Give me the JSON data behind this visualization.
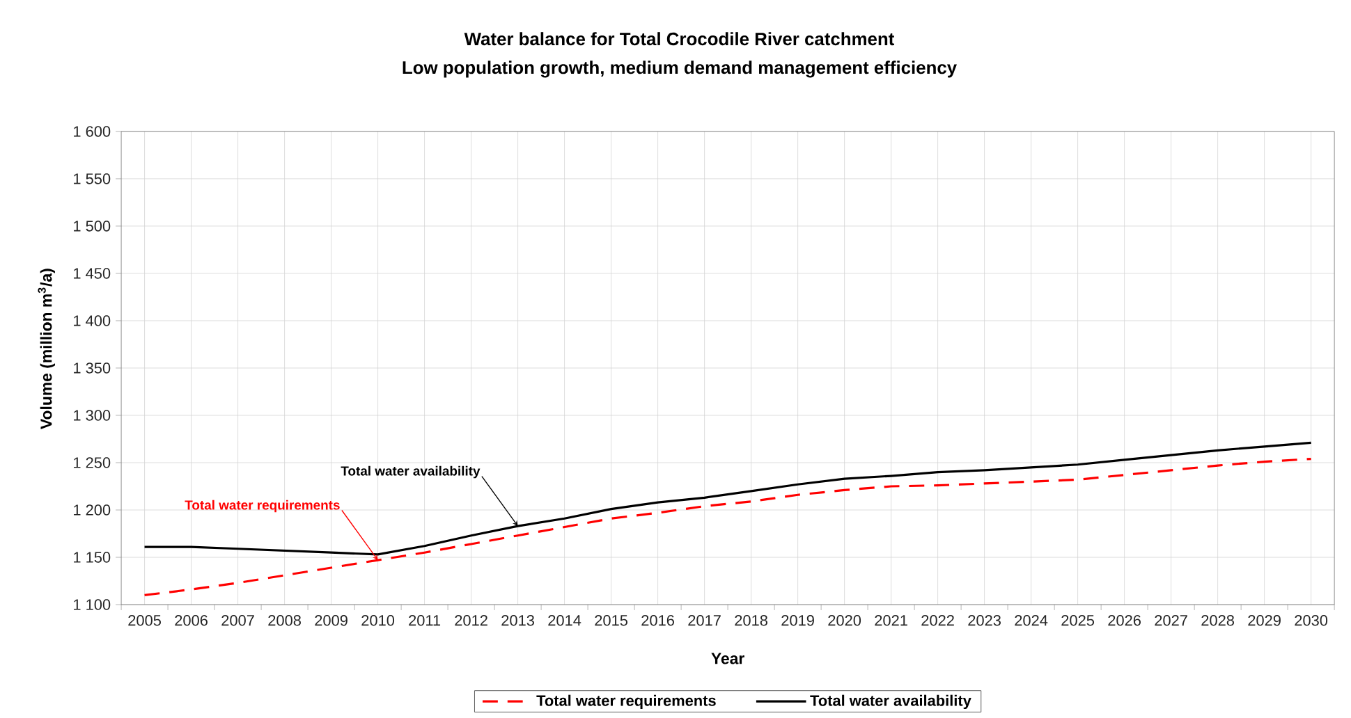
{
  "chart_data": {
    "type": "line",
    "title": "Water balance for Total Crocodile River catchment",
    "subtitle": "Low population growth, medium demand management efficiency",
    "xlabel": "Year",
    "ylabel": "Volume (million m$^{3}$/a)",
    "categories": [
      "2005",
      "2006",
      "2007",
      "2008",
      "2009",
      "2010",
      "2011",
      "2012",
      "2013",
      "2014",
      "2015",
      "2016",
      "2017",
      "2018",
      "2019",
      "2020",
      "2021",
      "2022",
      "2023",
      "2024",
      "2025",
      "2026",
      "2027",
      "2028",
      "2029",
      "2030"
    ],
    "series": [
      {
        "name": "Total water requirements",
        "color": "#ff0000",
        "line_style": "dashed",
        "values": [
          1110,
          1116,
          1123,
          1131,
          1139,
          1147,
          1155,
          1164,
          1173,
          1182,
          1191,
          1197,
          1204,
          1209,
          1216,
          1221,
          1225,
          1226,
          1228,
          1230,
          1232,
          1237,
          1242,
          1247,
          1251,
          1254
        ]
      },
      {
        "name": "Total water availability",
        "color": "#000000",
        "line_style": "solid",
        "values": [
          1161,
          1161,
          1159,
          1157,
          1155,
          1153,
          1162,
          1173,
          1183,
          1191,
          1201,
          1208,
          1213,
          1220,
          1227,
          1233,
          1236,
          1240,
          1242,
          1245,
          1248,
          1253,
          1258,
          1263,
          1267,
          1271
        ]
      }
    ],
    "ylim": [
      1100,
      1600
    ],
    "yticks": [
      {
        "value": 1100,
        "label": "1 100"
      },
      {
        "value": 1150,
        "label": "1 150"
      },
      {
        "value": 1200,
        "label": "1 200"
      },
      {
        "value": 1250,
        "label": "1 250"
      },
      {
        "value": 1300,
        "label": "1 300"
      },
      {
        "value": 1350,
        "label": "1 350"
      },
      {
        "value": 1400,
        "label": "1 400"
      },
      {
        "value": 1450,
        "label": "1 450"
      },
      {
        "value": 1500,
        "label": "1 500"
      },
      {
        "value": 1550,
        "label": "1 550"
      },
      {
        "value": 1600,
        "label": "1 600"
      }
    ],
    "grid": true,
    "legend": "bottom",
    "marker": "none",
    "annotations": [
      {
        "text": "Total water requirements",
        "x": "2010",
        "y": 1147
      },
      {
        "text": "Total water availability",
        "x": "2013",
        "y": 1183
      }
    ]
  }
}
